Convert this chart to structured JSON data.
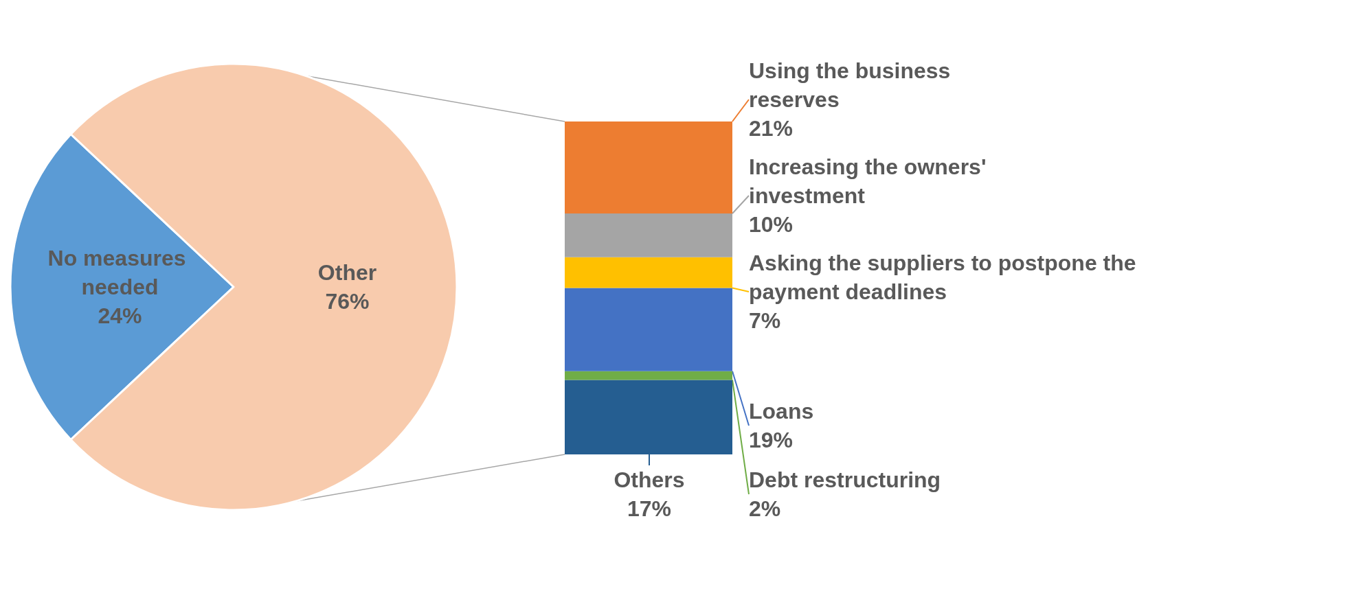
{
  "chart_data": [
    {
      "type": "pie",
      "categories": [
        "No measures needed",
        "Other"
      ],
      "values": [
        24,
        76
      ],
      "colors": [
        "#5b9bd5",
        "#f8cbad"
      ],
      "value_labels": [
        "24%",
        "76%"
      ]
    },
    {
      "type": "bar",
      "stacked": true,
      "categories": [
        null
      ],
      "series": [
        {
          "name": "Others",
          "color": "#255e91",
          "values": [
            17
          ],
          "value_labels": [
            "17%"
          ]
        },
        {
          "name": "Debt restructuring",
          "color": "#70ad47",
          "values": [
            2
          ],
          "value_labels": [
            "2%"
          ]
        },
        {
          "name": "Loans",
          "color": "#4472c4",
          "values": [
            19
          ],
          "value_labels": [
            "19%"
          ]
        },
        {
          "name": "Asking the suppliers to postpone the payment deadlines",
          "color": "#ffc000",
          "values": [
            7
          ],
          "value_labels": [
            "7%"
          ]
        },
        {
          "name": "Increasing the owners' investment",
          "color": "#a5a5a5",
          "values": [
            10
          ],
          "value_labels": [
            "10%"
          ]
        },
        {
          "name": "Using the business reserves",
          "color": "#ed7d31",
          "values": [
            21
          ],
          "value_labels": [
            "21%"
          ]
        }
      ]
    }
  ]
}
